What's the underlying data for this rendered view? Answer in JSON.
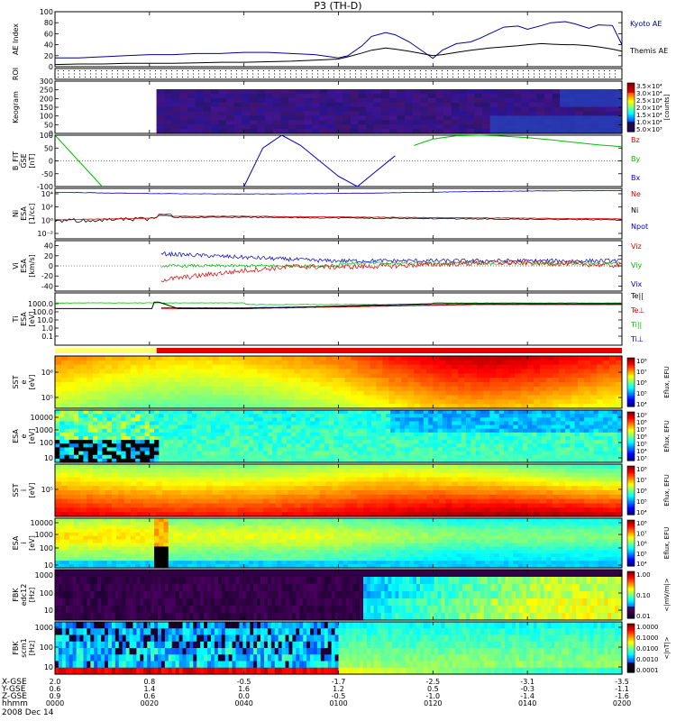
{
  "title": "P3 (TH-D)",
  "colors": {
    "kyoto": "#00009c",
    "themis": "#000000",
    "red": "#e00000",
    "green": "#00c000",
    "blue": "#0000c8",
    "black": "#000000"
  },
  "chart_data": [
    {
      "type": "line",
      "panel": "ae",
      "ylabel": "AE Index",
      "ylim": [
        0,
        100
      ],
      "yticks": [
        "100",
        "80",
        "60",
        "40",
        "20",
        "0"
      ],
      "x": [
        0,
        5,
        10,
        15,
        20,
        25,
        30,
        35,
        40,
        45,
        50,
        55,
        60,
        62,
        65,
        67,
        70,
        72,
        75,
        80,
        82,
        85,
        88,
        90,
        92,
        95,
        98,
        100,
        103,
        105,
        108,
        110,
        113,
        115,
        118,
        120
      ],
      "series": [
        {
          "name": "Kyoto AE",
          "color": "#00009c",
          "values": [
            16,
            16,
            18,
            20,
            22,
            22,
            24,
            24,
            26,
            26,
            24,
            22,
            16,
            20,
            38,
            55,
            62,
            58,
            45,
            15,
            30,
            42,
            45,
            52,
            60,
            72,
            74,
            68,
            75,
            80,
            82,
            78,
            70,
            76,
            75,
            40
          ]
        },
        {
          "name": "Themis AE",
          "color": "#000000",
          "values": [
            4,
            5,
            5,
            6,
            6,
            6,
            7,
            8,
            8,
            9,
            10,
            12,
            14,
            18,
            25,
            30,
            34,
            32,
            28,
            20,
            22,
            26,
            30,
            32,
            34,
            36,
            38,
            40,
            42,
            41,
            40,
            40,
            38,
            36,
            32,
            28
          ]
        }
      ]
    },
    {
      "type": "heatmap",
      "panel": "roi",
      "ylabel": "ROI"
    },
    {
      "type": "heatmap",
      "panel": "keogram",
      "ylabel": "Keogram",
      "yticks": [
        "300",
        "250",
        "200",
        "150",
        "100",
        "50",
        "0"
      ],
      "colorbar_label": "[counts]",
      "colorbar_ticks": [
        "3.5×10⁴",
        "3.0×10⁴",
        "2.5×10⁴",
        "2.0×10⁴",
        "1.5×10⁴",
        "1.0×10⁴",
        "5.0×10³"
      ]
    },
    {
      "type": "line",
      "panel": "bfit",
      "ylabel": "B_FIT GSE [nT]",
      "ylim": [
        -100,
        100
      ],
      "yticks": [
        "100",
        "50",
        "0",
        "-50",
        "-100"
      ],
      "x": [
        0,
        10,
        14,
        18,
        22,
        26,
        29,
        30,
        31,
        33,
        36,
        40,
        44,
        48,
        52,
        56,
        60,
        64,
        68,
        72,
        76,
        80,
        85,
        90,
        95,
        100,
        105,
        110,
        115,
        120
      ],
      "series": [
        {
          "name": "Bz",
          "color": "#e00000",
          "values": [
            null,
            null,
            null,
            null,
            null,
            null,
            null,
            null,
            null,
            null,
            null,
            null,
            null,
            null,
            null,
            null,
            null,
            null,
            null,
            null,
            null,
            null,
            null,
            null,
            null,
            null,
            null,
            null,
            null,
            null
          ]
        },
        {
          "name": "By",
          "color": "#00c000",
          "values": [
            100,
            -100,
            null,
            null,
            null,
            null,
            null,
            null,
            null,
            null,
            null,
            null,
            null,
            null,
            null,
            null,
            null,
            null,
            null,
            null,
            60,
            85,
            98,
            100,
            96,
            90,
            82,
            72,
            62,
            55
          ]
        },
        {
          "name": "Bx",
          "color": "#0000c8",
          "values": [
            null,
            null,
            null,
            null,
            null,
            null,
            null,
            null,
            null,
            null,
            null,
            -100,
            50,
            100,
            60,
            0,
            -60,
            -100,
            -40,
            20,
            null,
            null,
            null,
            null,
            null,
            null,
            null,
            null,
            null,
            null
          ]
        }
      ]
    },
    {
      "type": "line",
      "panel": "density",
      "ylabel": "Ni [1/cc]",
      "yticks": [
        "10⁴",
        "10²",
        "10⁰",
        "10⁻²"
      ],
      "series": [
        {
          "name": "Ne",
          "color": "#e00000"
        },
        {
          "name": "Ni",
          "color": "#000000"
        },
        {
          "name": "Npot",
          "color": "#0000c8"
        }
      ]
    },
    {
      "type": "line",
      "panel": "velocity",
      "ylabel": "Vi [km/s]",
      "ylim": [
        -50,
        50
      ],
      "yticks": [
        "40",
        "20",
        "0",
        "-20",
        "-40"
      ],
      "series": [
        {
          "name": "Viz",
          "color": "#e00000"
        },
        {
          "name": "Viy",
          "color": "#00c000"
        },
        {
          "name": "Vix",
          "color": "#0000c8"
        }
      ]
    },
    {
      "type": "line",
      "panel": "temperature",
      "ylabel": "Ti [eV]",
      "yticks": [
        "1000.0",
        "100.0",
        "10.0",
        "1.0",
        "0.1"
      ],
      "series": [
        {
          "name": "Te||",
          "color": "#000000"
        },
        {
          "name": "Te⊥",
          "color": "#e00000"
        },
        {
          "name": "Ti||",
          "color": "#00c000"
        },
        {
          "name": "Ti⊥",
          "color": "#0000c8"
        }
      ]
    },
    {
      "type": "heatmap",
      "panel": "sst_e",
      "ylabel": "SST eV",
      "yticks": [
        "10⁶",
        "10⁵"
      ],
      "colorbar_label": "Eflux, EFU",
      "colorbar_ticks": [
        "10⁸",
        "10⁷",
        "10⁶",
        "10⁵",
        "10⁴"
      ]
    },
    {
      "type": "heatmap",
      "panel": "esa_e",
      "ylabel": "ESA eV",
      "yticks": [
        "10000",
        "1000",
        "100",
        "10"
      ],
      "colorbar_label": "Eflux, EFU",
      "colorbar_ticks": [
        "10⁹",
        "10⁸",
        "10⁷",
        "10⁶",
        "10⁵",
        "10⁴",
        "10³"
      ]
    },
    {
      "type": "heatmap",
      "panel": "sst_i",
      "ylabel": "SST eV",
      "yticks": [
        "10⁵"
      ],
      "colorbar_label": "Eflux, EFU",
      "colorbar_ticks": [
        "10⁸",
        "10⁷",
        "10⁶",
        "10⁵",
        "10⁴"
      ]
    },
    {
      "type": "heatmap",
      "panel": "esa_i",
      "ylabel": "ESA eV",
      "yticks": [
        "10000",
        "1000",
        "100",
        "10"
      ],
      "colorbar_label": "Eflux, EFU",
      "colorbar_ticks": [
        "10⁸",
        "10⁷",
        "10⁶",
        "10⁵",
        "10⁴"
      ]
    },
    {
      "type": "heatmap",
      "panel": "fbk_edc",
      "ylabel": "FBK edc12 [Hz]",
      "yticks": [
        "1000",
        "100",
        "10"
      ],
      "colorbar_label": "<|mV/m|>",
      "colorbar_ticks": [
        "1.00",
        "0.10",
        "0.01"
      ]
    },
    {
      "type": "heatmap",
      "panel": "fbk_scm",
      "ylabel": "FBK scm1 [Hz]",
      "yticks": [
        "1000",
        "100",
        "10"
      ],
      "colorbar_label": "<|nT|>",
      "colorbar_ticks": [
        "1.0000",
        "0.1000",
        "0.0100",
        "0.0010",
        "0.0001"
      ]
    }
  ],
  "xaxis": {
    "row_labels": [
      "X-GSE",
      "Y-GSE",
      "Z-GSE",
      "hhmm",
      "2008 Dec 14"
    ],
    "ticks": [
      {
        "x": "2.0",
        "y": "0.6",
        "z": "0.9",
        "t": "0000"
      },
      {
        "x": "0.8",
        "y": "1.4",
        "z": "0.6",
        "t": "0020"
      },
      {
        "x": "-0.5",
        "y": "1.6",
        "z": "0.0",
        "t": "0040"
      },
      {
        "x": "-1.7",
        "y": "1.2",
        "z": "-0.5",
        "t": "0100"
      },
      {
        "x": "-2.5",
        "y": "0.5",
        "z": "-1.0",
        "t": "0120"
      },
      {
        "x": "-3.1",
        "y": "-0.3",
        "z": "-1.4",
        "t": "0140"
      },
      {
        "x": "-3.5",
        "y": "-1.1",
        "z": "-1.6",
        "t": "0200"
      }
    ]
  }
}
